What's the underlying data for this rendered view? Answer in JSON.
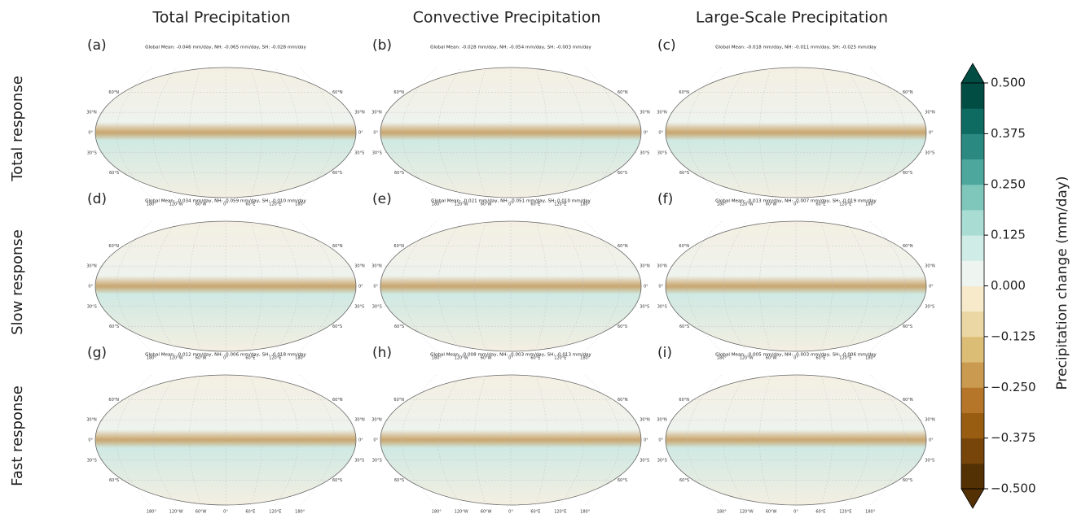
{
  "columns": [
    "Total Precipitation",
    "Convective Precipitation",
    "Large-Scale Precipitation"
  ],
  "rows": [
    "Total response",
    "Slow response",
    "Fast response"
  ],
  "panels": [
    {
      "label": "(a)",
      "subtitle": "Global Mean: -0.046 mm/day, NH: -0.065 mm/day, SH: -0.028 mm/day"
    },
    {
      "label": "(b)",
      "subtitle": "Global Mean: -0.028 mm/day, NH: -0.054 mm/day, SH: -0.003 mm/day"
    },
    {
      "label": "(c)",
      "subtitle": "Global Mean: -0.018 mm/day, NH: -0.011 mm/day, SH: -0.025 mm/day"
    },
    {
      "label": "(d)",
      "subtitle": "Global Mean: -0.034 mm/day, NH: -0.059 mm/day, SH: -0.010 mm/day"
    },
    {
      "label": "(e)",
      "subtitle": "Global Mean: -0.021 mm/day, NH: -0.051 mm/day, SH: 0.010 mm/day"
    },
    {
      "label": "(f)",
      "subtitle": "Global Mean: -0.013 mm/day, NH: -0.007 mm/day, SH: -0.019 mm/day"
    },
    {
      "label": "(g)",
      "subtitle": "Global Mean: -0.012 mm/day, NH: -0.006 mm/day, SH: -0.018 mm/day"
    },
    {
      "label": "(h)",
      "subtitle": "Global Mean: -0.008 mm/day, NH: -0.003 mm/day, SH: -0.013 mm/day"
    },
    {
      "label": "(i)",
      "subtitle": "Global Mean: -0.005 mm/day, NH: -0.003 mm/day, SH: -0.006 mm/day"
    }
  ],
  "lat_labels": [
    "60°N",
    "30°N",
    "0°",
    "30°S",
    "60°S"
  ],
  "lon_labels": [
    "180°",
    "120°W",
    "60°W",
    "0°",
    "60°E",
    "120°E",
    "180°"
  ],
  "colorbar": {
    "label": "Precipitation change (mm/day)",
    "lim": [
      -0.5,
      0.5
    ],
    "ticks": [
      {
        "value": 0.5,
        "label": "0.500"
      },
      {
        "value": 0.375,
        "label": "0.375"
      },
      {
        "value": 0.25,
        "label": "0.250"
      },
      {
        "value": 0.125,
        "label": "0.125"
      },
      {
        "value": 0,
        "label": "0.000"
      },
      {
        "value": -0.125,
        "label": "−0.125"
      },
      {
        "value": -0.25,
        "label": "−0.250"
      },
      {
        "value": -0.375,
        "label": "−0.375"
      },
      {
        "value": -0.5,
        "label": "−0.500"
      }
    ],
    "colors": [
      "#543005",
      "#77440a",
      "#995d12",
      "#b5762a",
      "#c99a4f",
      "#dcbd76",
      "#ebd7a3",
      "#f6eacb",
      "#eef5f1",
      "#cfece6",
      "#a9ddd4",
      "#7fc6bb",
      "#4ea79d",
      "#2a8a82",
      "#0e6b62",
      "#014d44"
    ]
  }
}
